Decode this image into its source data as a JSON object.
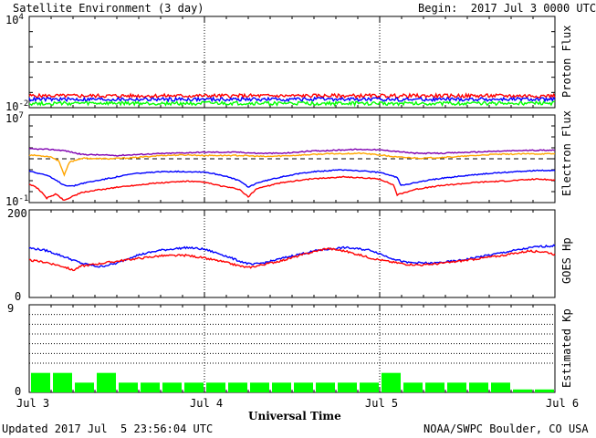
{
  "header": {
    "title": "Satellite Environment (3 day)",
    "begin": "Begin:  2017 Jul 3 0000 UTC"
  },
  "footer": {
    "updated": "Updated 2017 Jul  5 23:56:04 UTC",
    "credit": "NOAA/SWPC Boulder, CO USA"
  },
  "xlabel": "Universal Time",
  "xticks": [
    "Jul 3",
    "Jul 4",
    "Jul 5",
    "Jul 6"
  ],
  "colors": {
    "red": "#ff0000",
    "blue": "#0000ff",
    "green": "#00ff00",
    "purple": "#7f00b0",
    "orange": "#ffa500",
    "kp_bar": "#00ff00",
    "frame": "#000000"
  },
  "chart_data": [
    {
      "id": "proton",
      "type": "line",
      "ylabel": "Proton Flux",
      "scale": "log",
      "ylim_exp": [
        -2,
        4
      ],
      "ytick_base": "10",
      "ytick_exps": [
        "4",
        "-2"
      ],
      "threshold_exp": 1,
      "series": [
        {
          "color": "red",
          "values": [
            [
              0,
              -1.22
            ],
            [
              3,
              -1.22
            ]
          ]
        },
        {
          "color": "blue",
          "values": [
            [
              0,
              -1.45
            ],
            [
              3,
              -1.45
            ]
          ]
        },
        {
          "color": "green",
          "values": [
            [
              0,
              -1.72
            ],
            [
              3,
              -1.72
            ]
          ]
        }
      ]
    },
    {
      "id": "electron",
      "type": "line",
      "ylabel": "Electron Flux",
      "scale": "log",
      "ylim_exp": [
        -1,
        7
      ],
      "ytick_base": "10",
      "ytick_exps": [
        "7",
        "-1"
      ],
      "threshold_exp": 3.0,
      "series": [
        {
          "color": "purple",
          "values": [
            [
              0,
              3.9
            ],
            [
              0.12,
              3.85
            ],
            [
              0.2,
              3.75
            ],
            [
              0.3,
              3.4
            ],
            [
              0.5,
              3.3
            ],
            [
              0.7,
              3.45
            ],
            [
              0.9,
              3.55
            ],
            [
              1.0,
              3.6
            ],
            [
              1.2,
              3.6
            ],
            [
              1.3,
              3.5
            ],
            [
              1.45,
              3.5
            ],
            [
              1.6,
              3.7
            ],
            [
              1.7,
              3.75
            ],
            [
              1.85,
              3.85
            ],
            [
              1.95,
              3.85
            ],
            [
              2.05,
              3.75
            ],
            [
              2.2,
              3.5
            ],
            [
              2.35,
              3.5
            ],
            [
              2.6,
              3.65
            ],
            [
              2.8,
              3.75
            ],
            [
              3.0,
              3.8
            ]
          ]
        },
        {
          "color": "orange",
          "values": [
            [
              0,
              3.35
            ],
            [
              0.12,
              3.2
            ],
            [
              0.17,
              2.8
            ],
            [
              0.2,
              1.5
            ],
            [
              0.23,
              2.7
            ],
            [
              0.3,
              3.05
            ],
            [
              0.45,
              3.0
            ],
            [
              0.6,
              3.1
            ],
            [
              0.75,
              3.3
            ],
            [
              0.9,
              3.35
            ],
            [
              1.0,
              3.3
            ],
            [
              1.2,
              3.3
            ],
            [
              1.35,
              3.2
            ],
            [
              1.5,
              3.3
            ],
            [
              1.7,
              3.45
            ],
            [
              1.9,
              3.5
            ],
            [
              2.0,
              3.35
            ],
            [
              2.1,
              3.15
            ],
            [
              2.25,
              3.05
            ],
            [
              2.45,
              3.2
            ],
            [
              2.65,
              3.4
            ],
            [
              2.85,
              3.45
            ],
            [
              3.0,
              3.45
            ]
          ]
        },
        {
          "color": "blue",
          "values": [
            [
              0,
              1.9
            ],
            [
              0.1,
              1.5
            ],
            [
              0.2,
              0.6
            ],
            [
              0.25,
              0.5
            ],
            [
              0.3,
              0.75
            ],
            [
              0.45,
              1.2
            ],
            [
              0.6,
              1.65
            ],
            [
              0.8,
              1.85
            ],
            [
              1.0,
              1.8
            ],
            [
              1.1,
              1.5
            ],
            [
              1.2,
              1.0
            ],
            [
              1.25,
              0.4
            ],
            [
              1.3,
              0.8
            ],
            [
              1.45,
              1.4
            ],
            [
              1.6,
              1.8
            ],
            [
              1.8,
              2.0
            ],
            [
              2.0,
              1.75
            ],
            [
              2.1,
              1.3
            ],
            [
              2.12,
              0.6
            ],
            [
              2.2,
              0.8
            ],
            [
              2.3,
              1.1
            ],
            [
              2.45,
              1.4
            ],
            [
              2.65,
              1.7
            ],
            [
              2.85,
              1.9
            ],
            [
              3.0,
              1.95
            ]
          ]
        },
        {
          "color": "red",
          "values": [
            [
              0,
              0.7
            ],
            [
              0.05,
              0.3
            ],
            [
              0.1,
              -0.6
            ],
            [
              0.15,
              -0.2
            ],
            [
              0.2,
              -0.8
            ],
            [
              0.25,
              -0.4
            ],
            [
              0.3,
              -0.1
            ],
            [
              0.35,
              0.05
            ],
            [
              0.5,
              0.4
            ],
            [
              0.7,
              0.75
            ],
            [
              0.9,
              0.95
            ],
            [
              1.0,
              0.85
            ],
            [
              1.1,
              0.5
            ],
            [
              1.2,
              0.2
            ],
            [
              1.25,
              -0.5
            ],
            [
              1.3,
              0.3
            ],
            [
              1.45,
              0.85
            ],
            [
              1.6,
              1.15
            ],
            [
              1.8,
              1.35
            ],
            [
              2.0,
              1.15
            ],
            [
              2.08,
              0.6
            ],
            [
              2.1,
              -0.3
            ],
            [
              2.2,
              0.2
            ],
            [
              2.35,
              0.55
            ],
            [
              2.55,
              0.85
            ],
            [
              2.75,
              1.0
            ],
            [
              2.9,
              1.15
            ],
            [
              3.0,
              1.05
            ]
          ]
        }
      ]
    },
    {
      "id": "hp",
      "type": "line",
      "ylabel": "GOES Hp",
      "scale": "linear",
      "ylim": [
        0,
        200
      ],
      "yticks": [
        "200",
        "0"
      ],
      "series": [
        {
          "color": "blue",
          "values": [
            [
              0,
              113
            ],
            [
              0.1,
              107
            ],
            [
              0.2,
              93
            ],
            [
              0.3,
              78
            ],
            [
              0.4,
              70
            ],
            [
              0.5,
              78
            ],
            [
              0.6,
              95
            ],
            [
              0.75,
              108
            ],
            [
              0.9,
              114
            ],
            [
              1.0,
              110
            ],
            [
              1.1,
              98
            ],
            [
              1.2,
              83
            ],
            [
              1.27,
              75
            ],
            [
              1.35,
              80
            ],
            [
              1.5,
              95
            ],
            [
              1.65,
              108
            ],
            [
              1.8,
              114
            ],
            [
              1.95,
              108
            ],
            [
              2.05,
              92
            ],
            [
              2.15,
              80
            ],
            [
              2.3,
              78
            ],
            [
              2.45,
              84
            ],
            [
              2.6,
              95
            ],
            [
              2.75,
              106
            ],
            [
              2.9,
              116
            ],
            [
              3.0,
              118
            ]
          ]
        },
        {
          "color": "red",
          "values": [
            [
              0,
              85
            ],
            [
              0.1,
              80
            ],
            [
              0.2,
              70
            ],
            [
              0.25,
              62
            ],
            [
              0.3,
              72
            ],
            [
              0.45,
              80
            ],
            [
              0.6,
              88
            ],
            [
              0.75,
              95
            ],
            [
              0.9,
              96
            ],
            [
              1.0,
              90
            ],
            [
              1.1,
              82
            ],
            [
              1.2,
              72
            ],
            [
              1.25,
              68
            ],
            [
              1.3,
              72
            ],
            [
              1.45,
              85
            ],
            [
              1.6,
              102
            ],
            [
              1.7,
              112
            ],
            [
              1.8,
              106
            ],
            [
              1.95,
              90
            ],
            [
              2.05,
              82
            ],
            [
              2.15,
              76
            ],
            [
              2.25,
              74
            ],
            [
              2.4,
              80
            ],
            [
              2.55,
              88
            ],
            [
              2.7,
              96
            ],
            [
              2.85,
              106
            ],
            [
              2.95,
              104
            ],
            [
              3.0,
              98
            ]
          ]
        }
      ]
    },
    {
      "id": "kp",
      "type": "bar",
      "ylabel": "Estimated Kp",
      "ylim": [
        0,
        9
      ],
      "yticks": [
        "9",
        "0"
      ],
      "gridlines": [
        3,
        4,
        5,
        6,
        7,
        8
      ],
      "bar_width_hours": 3,
      "values": [
        2,
        2,
        1,
        2,
        1,
        1,
        1,
        1,
        1,
        1,
        1,
        1,
        1,
        1,
        1,
        1,
        2,
        1,
        1,
        1,
        1,
        1,
        0.3,
        0.3
      ]
    }
  ]
}
